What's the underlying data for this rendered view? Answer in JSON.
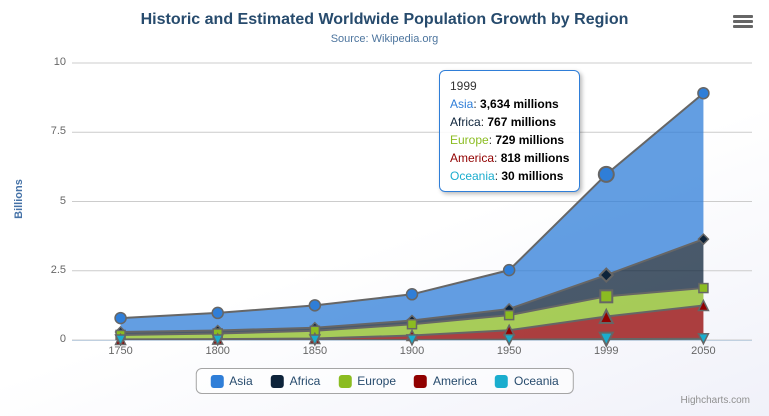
{
  "title": "Historic and Estimated Worldwide Population Growth by Region",
  "subtitle": "Source: Wikipedia.org",
  "credits": "Highcharts.com",
  "chart_data": {
    "type": "area",
    "stacking": "normal",
    "title": "Historic and Estimated Worldwide Population Growth by Region",
    "categories": [
      "1750",
      "1800",
      "1850",
      "1900",
      "1950",
      "1999",
      "2050"
    ],
    "series": [
      {
        "name": "Asia",
        "color": "#2f7ed8",
        "marker": "circle",
        "values": [
          502,
          635,
          809,
          947,
          1402,
          3634,
          5268
        ]
      },
      {
        "name": "Africa",
        "color": "#0d233a",
        "marker": "diamond",
        "values": [
          106,
          107,
          111,
          133,
          221,
          767,
          1766
        ]
      },
      {
        "name": "Europe",
        "color": "#8bbc21",
        "marker": "square",
        "values": [
          163,
          203,
          276,
          408,
          547,
          729,
          628
        ]
      },
      {
        "name": "America",
        "color": "#910000",
        "marker": "triangle",
        "values": [
          18,
          31,
          54,
          156,
          339,
          818,
          1201
        ]
      },
      {
        "name": "Oceania",
        "color": "#1aadce",
        "marker": "triangle-down",
        "values": [
          2,
          2,
          2,
          6,
          13,
          30,
          46
        ]
      }
    ],
    "values_unit": "millions",
    "ylabel": "Billions",
    "yticks": [
      "0",
      "2.5",
      "5",
      "7.5",
      "10"
    ],
    "ylim": [
      0,
      10
    ],
    "grid": true,
    "legend_position": "bottom",
    "hover_index": 5,
    "line_color": "#666666",
    "fill_opacity": 0.75,
    "grid_color": "#cccccc",
    "axis_line_color": "#c0d0e0"
  },
  "tooltip": {
    "header": "1999",
    "rows": [
      {
        "label": "Asia",
        "value": "3,634 millions",
        "color": "#2f7ed8"
      },
      {
        "label": "Africa",
        "value": "767 millions",
        "color": "#0d233a"
      },
      {
        "label": "Europe",
        "value": "729 millions",
        "color": "#8bbc21"
      },
      {
        "label": "America",
        "value": "818 millions",
        "color": "#910000"
      },
      {
        "label": "Oceania",
        "value": "30 millions",
        "color": "#1aadce"
      }
    ]
  },
  "legend": {
    "items": [
      {
        "label": "Asia",
        "color": "#2f7ed8"
      },
      {
        "label": "Africa",
        "color": "#0d233a"
      },
      {
        "label": "Europe",
        "color": "#8bbc21"
      },
      {
        "label": "America",
        "color": "#910000"
      },
      {
        "label": "Oceania",
        "color": "#1aadce"
      }
    ]
  }
}
